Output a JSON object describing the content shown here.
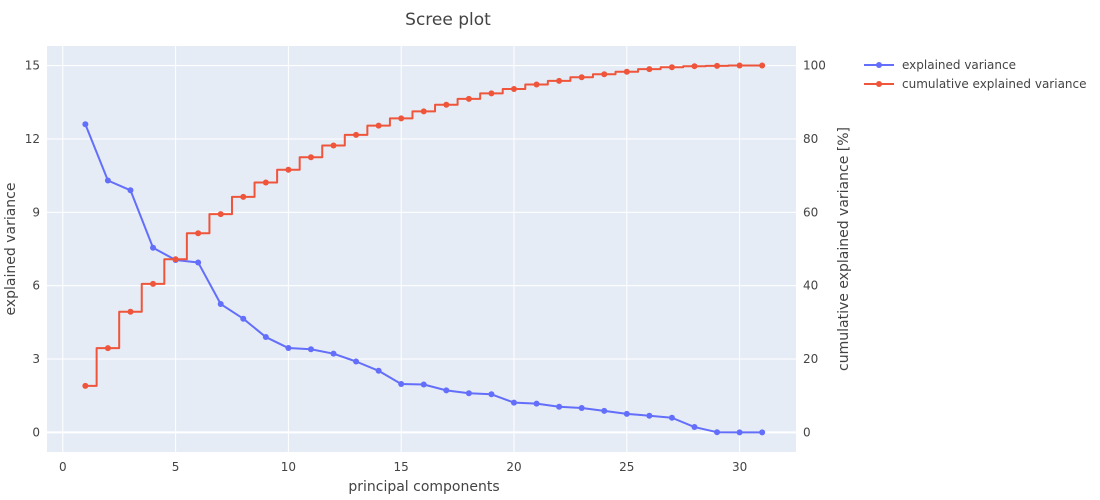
{
  "chart_data": {
    "type": "line",
    "title": "Scree plot",
    "xlabel": "principal components",
    "ylabel": "explained variance",
    "y2label": "cumulative explained variance [%]",
    "xlim": [
      -0.7,
      32.5
    ],
    "ylim": [
      -0.8,
      15.8
    ],
    "y2lim": [
      -5.3,
      105.3
    ],
    "x_ticks": [
      0,
      5,
      10,
      15,
      20,
      25,
      30
    ],
    "y_ticks": [
      0,
      3,
      6,
      9,
      12,
      15
    ],
    "y2_ticks": [
      0,
      20,
      40,
      60,
      80,
      100
    ],
    "grid": true,
    "legend_position": "top-right outside",
    "background_color": "#e5ecf6",
    "x": [
      1,
      2,
      3,
      4,
      5,
      6,
      7,
      8,
      9,
      10,
      11,
      12,
      13,
      14,
      15,
      16,
      17,
      18,
      19,
      20,
      21,
      22,
      23,
      24,
      25,
      26,
      27,
      28,
      29,
      30,
      31
    ],
    "series": [
      {
        "name": "explained variance",
        "axis": "left",
        "shape": "linear",
        "color": "#636efa",
        "values": [
          12.6,
          10.3,
          9.9,
          7.55,
          7.05,
          6.95,
          5.25,
          4.65,
          3.9,
          3.45,
          3.4,
          3.22,
          2.9,
          2.52,
          1.98,
          1.96,
          1.72,
          1.6,
          1.56,
          1.22,
          1.18,
          1.05,
          1.0,
          0.88,
          0.76,
          0.68,
          0.6,
          0.22,
          0.01,
          0.0,
          0.0
        ]
      },
      {
        "name": "cumulative explained variance",
        "axis": "right",
        "shape": "step",
        "color": "#ef553b",
        "values": [
          12.7,
          23.0,
          32.9,
          40.5,
          47.2,
          54.3,
          59.5,
          64.2,
          68.1,
          71.6,
          75.0,
          78.2,
          81.1,
          83.6,
          85.6,
          87.5,
          89.3,
          90.9,
          92.4,
          93.6,
          94.8,
          95.8,
          96.8,
          97.6,
          98.3,
          99.0,
          99.5,
          99.8,
          99.9,
          100.0,
          100.0
        ]
      }
    ]
  }
}
